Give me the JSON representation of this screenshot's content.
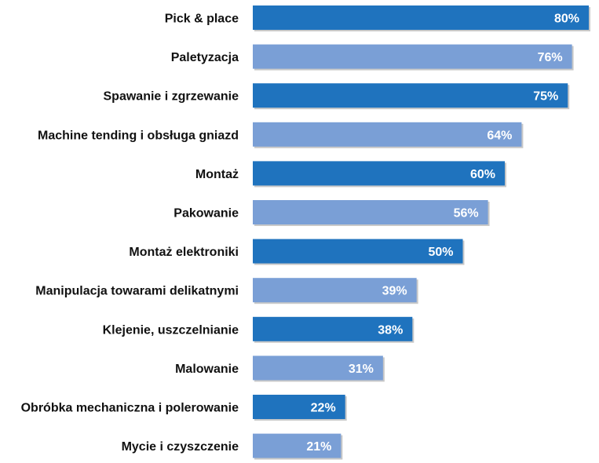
{
  "chart_data": {
    "type": "bar",
    "orientation": "horizontal",
    "categories": [
      "Pick & place",
      "Paletyzacja",
      "Spawanie i zgrzewanie",
      "Machine tending i obsługa gniazd",
      "Montaż",
      "Pakowanie",
      "Montaż elektroniki",
      "Manipulacja towarami delikatnymi",
      "Klejenie, uszczelnianie",
      "Malowanie",
      "Obróbka mechaniczna i polerowanie",
      "Mycie i czyszczenie"
    ],
    "values": [
      80,
      76,
      75,
      64,
      60,
      56,
      50,
      39,
      38,
      31,
      22,
      21
    ],
    "value_labels": [
      "80%",
      "76%",
      "75%",
      "64%",
      "60%",
      "56%",
      "50%",
      "39%",
      "38%",
      "31%",
      "22%",
      "21%"
    ],
    "title": "",
    "xlabel": "",
    "ylabel": "",
    "xlim": [
      0,
      80
    ],
    "grid": false,
    "legend": "none",
    "colors": {
      "dark": "#1f73be",
      "light": "#7a9fd6",
      "shadow": "#c8c8c8"
    }
  }
}
